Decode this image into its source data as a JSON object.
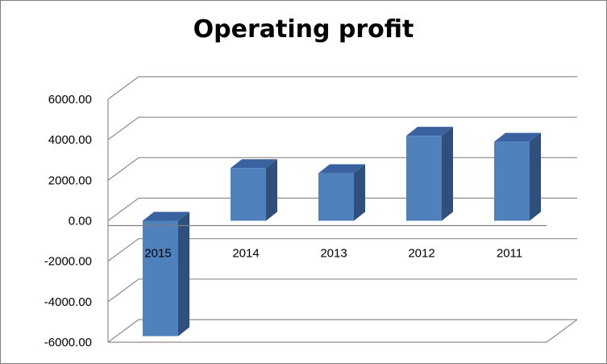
{
  "chart_data": {
    "type": "bar",
    "title": "Operating profit",
    "categories": [
      "2015",
      "2014",
      "2013",
      "2012",
      "2011"
    ],
    "values": [
      -5700,
      2600,
      2350,
      4200,
      3900
    ],
    "ylim": [
      -6000,
      6000
    ],
    "yticks": [
      "6000.00",
      "4000.00",
      "2000.00",
      "0.00",
      "-2000.00",
      "-4000.00",
      "-6000.00"
    ],
    "grid": true,
    "legend": "none",
    "bar_color": "#4f81bd",
    "bar_side_color": "#2f4f7c",
    "bar_top_color": "#3b62a0"
  }
}
